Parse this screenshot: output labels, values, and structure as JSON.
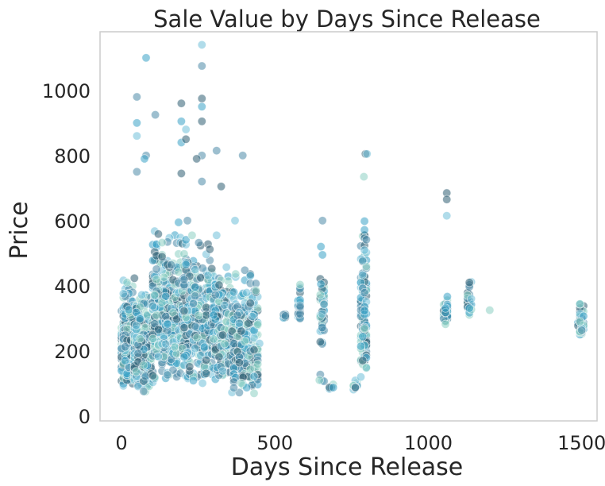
{
  "chart_data": {
    "type": "scatter",
    "title": "Sale Value by Days Since Release",
    "xlabel": "Days Since Release",
    "ylabel": "Price",
    "xlim": [
      -70,
      1550
    ],
    "ylim": [
      -15,
      1180
    ],
    "xticks": [
      0,
      500,
      1000,
      1500
    ],
    "yticks": [
      0,
      200,
      400,
      600,
      800,
      1000
    ],
    "grid": false,
    "legend": "none",
    "point_colors": [
      "#2f5f73",
      "#3aa3c6",
      "#8dd0c2",
      "#4d8aa8",
      "#6fc0d8"
    ],
    "point_opacity": 0.55,
    "clusters": [
      {
        "x": [
          0,
          40
        ],
        "y": [
          80,
          450
        ],
        "n": 320
      },
      {
        "x": [
          40,
          100
        ],
        "y": [
          60,
          450
        ],
        "n": 260
      },
      {
        "x": [
          100,
          200
        ],
        "y": [
          100,
          650
        ],
        "n": 380
      },
      {
        "x": [
          200,
          300
        ],
        "y": [
          90,
          600
        ],
        "n": 360
      },
      {
        "x": [
          300,
          360
        ],
        "y": [
          100,
          500
        ],
        "n": 200
      },
      {
        "x": [
          360,
          450
        ],
        "y": [
          60,
          500
        ],
        "n": 240
      },
      {
        "x": [
          530,
          545
        ],
        "y": [
          300,
          330
        ],
        "n": 6
      },
      {
        "x": [
          575,
          585
        ],
        "y": [
          270,
          450
        ],
        "n": 30
      },
      {
        "x": [
          645,
          660
        ],
        "y": [
          200,
          500
        ],
        "n": 40
      },
      {
        "x": [
          645,
          660
        ],
        "y": [
          100,
          130
        ],
        "n": 3
      },
      {
        "x": [
          680,
          690
        ],
        "y": [
          70,
          110
        ],
        "n": 5
      },
      {
        "x": [
          755,
          770
        ],
        "y": [
          80,
          120
        ],
        "n": 12
      },
      {
        "x": [
          780,
          800
        ],
        "y": [
          110,
          680
        ],
        "n": 120
      },
      {
        "x": [
          1050,
          1065
        ],
        "y": [
          270,
          410
        ],
        "n": 45
      },
      {
        "x": [
          1125,
          1140
        ],
        "y": [
          300,
          450
        ],
        "n": 30
      },
      {
        "x": [
          1490,
          1505
        ],
        "y": [
          240,
          370
        ],
        "n": 45
      }
    ],
    "points": [
      [
        80,
        1100
      ],
      [
        262,
        1140
      ],
      [
        262,
        1075
      ],
      [
        50,
        980
      ],
      [
        262,
        975
      ],
      [
        262,
        950
      ],
      [
        110,
        925
      ],
      [
        50,
        900
      ],
      [
        195,
        960
      ],
      [
        210,
        880
      ],
      [
        262,
        905
      ],
      [
        50,
        860
      ],
      [
        195,
        905
      ],
      [
        195,
        840
      ],
      [
        210,
        850
      ],
      [
        310,
        815
      ],
      [
        395,
        800
      ],
      [
        262,
        800
      ],
      [
        245,
        790
      ],
      [
        80,
        800
      ],
      [
        75,
        790
      ],
      [
        195,
        745
      ],
      [
        325,
        705
      ],
      [
        262,
        720
      ],
      [
        50,
        750
      ],
      [
        370,
        600
      ],
      [
        215,
        600
      ],
      [
        230,
        555
      ],
      [
        310,
        555
      ],
      [
        795,
        805
      ],
      [
        800,
        805
      ],
      [
        790,
        735
      ],
      [
        1060,
        685
      ],
      [
        1060,
        665
      ],
      [
        1060,
        615
      ],
      [
        655,
        600
      ],
      [
        650,
        520
      ],
      [
        655,
        495
      ],
      [
        650,
        405
      ],
      [
        1200,
        325
      ],
      [
        645,
        110
      ]
    ]
  }
}
